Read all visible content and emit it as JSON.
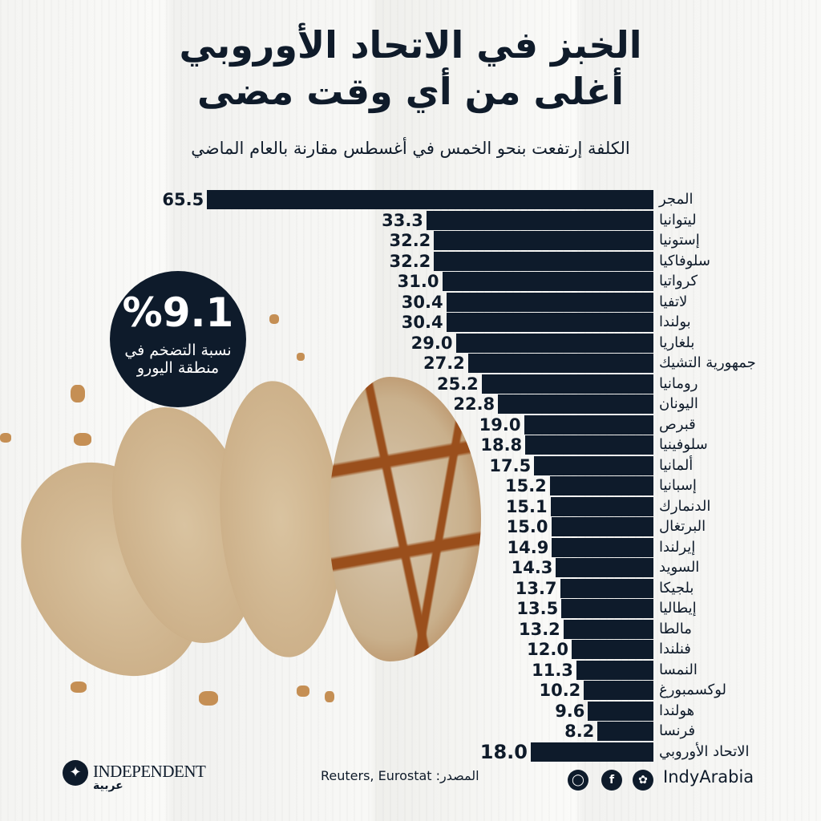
{
  "header": {
    "title_line1": "الخبز في الاتحاد الأوروبي",
    "title_line2": "أغلى من أي وقت مضى",
    "subtitle": "الكلفة إرتفعت بنحو الخمس في أغسطس مقارنة بالعام الماضي"
  },
  "badge": {
    "value": "%9.1",
    "line1": "نسبة التضخم في",
    "line2": "منطقة اليورو"
  },
  "footer": {
    "logo_text": "INDEPENDENT",
    "logo_sub": "عربية",
    "source": "Reuters, Eurostat :المصدر",
    "social_handle": "IndyArabia",
    "icons": [
      "instagram-icon",
      "facebook-icon",
      "twitter-icon"
    ]
  },
  "colors": {
    "bar": "#0e1b2b",
    "text": "#0f1b2a",
    "background": "#f6f6f4"
  },
  "chart_data": {
    "type": "bar",
    "orientation": "horizontal",
    "title": "الخبز في الاتحاد الأوروبي أغلى من أي وقت مضى",
    "subtitle": "الكلفة إرتفعت بنحو الخمس في أغسطس مقارنة بالعام الماضي",
    "xlabel": "",
    "ylabel": "",
    "unit": "% year-on-year change in bread prices (August)",
    "grid": false,
    "legend": null,
    "categories": [
      "المجر",
      "ليتوانيا",
      "إستونيا",
      "سلوفاكيا",
      "كرواتيا",
      "لاتفيا",
      "بولندا",
      "بلغاريا",
      "جمهورية التشيك",
      "رومانيا",
      "اليونان",
      "قبرص",
      "سلوفينيا",
      "ألمانيا",
      "إسبانيا",
      "الدنمارك",
      "البرتغال",
      "إيرلندا",
      "السويد",
      "بلجيكا",
      "إيطاليا",
      "مالطا",
      "فنلندا",
      "النمسا",
      "لوكسمبورغ",
      "هولندا",
      "فرنسا",
      "الاتحاد الأوروبي"
    ],
    "values": [
      65.5,
      33.3,
      32.2,
      32.2,
      31.0,
      30.4,
      30.4,
      29.0,
      27.2,
      25.2,
      22.8,
      19.0,
      18.8,
      17.5,
      15.2,
      15.1,
      15.0,
      14.9,
      14.3,
      13.7,
      13.5,
      13.2,
      12.0,
      11.3,
      10.2,
      9.6,
      8.2,
      18.0
    ],
    "labels": [
      "65.5",
      "33.3",
      "32.2",
      "32.2",
      "31.0",
      "30.4",
      "30.4",
      "29.0",
      "27.2",
      "25.2",
      "22.8",
      "19.0",
      "18.8",
      "17.5",
      "15.2",
      "15.1",
      "15.0",
      "14.9",
      "14.3",
      "13.7",
      "13.5",
      "13.2",
      "12.0",
      "11.3",
      "10.2",
      "9.6",
      "8.2",
      "18.0"
    ],
    "xlim": [
      0,
      70
    ],
    "annotations": [
      {
        "text": "%9.1 نسبة التضخم في منطقة اليورو"
      }
    ],
    "source": "Reuters, Eurostat"
  }
}
